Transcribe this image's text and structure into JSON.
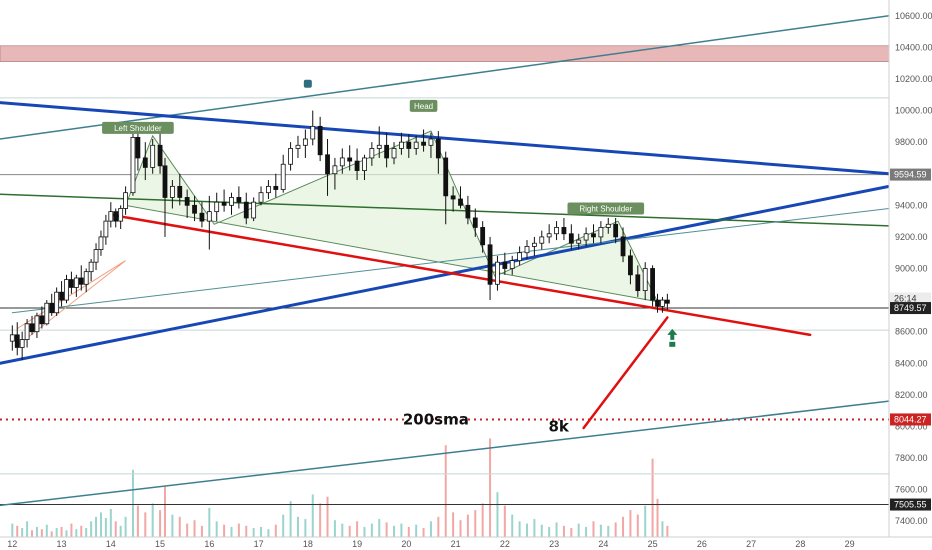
{
  "chart_data": {
    "type": "candlestick",
    "y_axis": {
      "min": 7300,
      "max": 10700,
      "ticks": [
        7400,
        7600,
        7800,
        8000,
        8200,
        8400,
        8600,
        8800,
        9000,
        9200,
        9400,
        9600,
        9800,
        10000,
        10200,
        10400,
        10600
      ]
    },
    "x_axis": {
      "min": 11.75,
      "max": 29.8,
      "ticks": [
        12,
        13,
        14,
        15,
        16,
        17,
        18,
        19,
        20,
        21,
        22,
        23,
        24,
        25,
        26,
        27,
        28,
        29
      ]
    },
    "grid": false,
    "price_tags": [
      {
        "label": "9594.59",
        "price": 9594.59,
        "style": "gray"
      },
      {
        "label": "26:14",
        "price": 8810,
        "style": "light"
      },
      {
        "label": "8749.57",
        "price": 8749.57,
        "style": "black"
      },
      {
        "label": "8044.27",
        "price": 8044.27,
        "style": "red"
      },
      {
        "label": "7505.55",
        "price": 7505.55,
        "style": "black"
      }
    ],
    "resistance_zone": {
      "low": 10310,
      "high": 10410,
      "color": "#e8b8b8"
    },
    "horizontal_lines": [
      {
        "price": 9594.59,
        "color": "#888888"
      },
      {
        "price": 8749.57,
        "color": "#333333"
      },
      {
        "price": 7505.55,
        "color": "#333333"
      },
      {
        "price": 10080,
        "color": "#c8d8d8"
      },
      {
        "price": 8610,
        "color": "#c8d8d8"
      },
      {
        "price": 7700,
        "color": "#c8d8d8"
      }
    ],
    "sma200": {
      "label": "200sma",
      "price": 8044.27,
      "color": "#cc2222"
    },
    "trend_lines": [
      {
        "name": "upper-channel-teal",
        "from": [
          11.75,
          9820
        ],
        "to": [
          29.8,
          10600
        ],
        "color": "#3e7f8f",
        "width": 1.5
      },
      {
        "name": "lower-channel-teal",
        "from": [
          11.75,
          7500
        ],
        "to": [
          29.8,
          8160
        ],
        "color": "#3e7f8f",
        "width": 1.5
      },
      {
        "name": "blue-descending",
        "from": [
          11.75,
          10050
        ],
        "to": [
          29.8,
          9600
        ],
        "color": "#1747b5",
        "width": 3
      },
      {
        "name": "blue-ascending",
        "from": [
          11.75,
          8400
        ],
        "to": [
          29.8,
          9520
        ],
        "color": "#1747b5",
        "width": 3
      },
      {
        "name": "green-trend",
        "from": [
          11.75,
          9470
        ],
        "to": [
          29.8,
          9270
        ],
        "color": "#2f6e2f",
        "width": 1.5
      },
      {
        "name": "thin-teal",
        "from": [
          12.0,
          8720
        ],
        "to": [
          29.8,
          9380
        ],
        "color": "#4f8f96",
        "width": 1
      },
      {
        "name": "neckline-red",
        "from": [
          14.0,
          9340
        ],
        "to": [
          28.2,
          8580
        ],
        "color": "#e01010",
        "width": 2.5
      },
      {
        "name": "projection-8k",
        "from": [
          23.6,
          7990
        ],
        "to": [
          25.3,
          8690
        ],
        "color": "#e01010",
        "width": 2.5
      }
    ],
    "hs_pattern": {
      "points": [
        [
          14.3,
          9400
        ],
        [
          14.85,
          9840
        ],
        [
          16.1,
          9280
        ],
        [
          20.5,
          9870
        ],
        [
          21.8,
          8950
        ],
        [
          24.3,
          9300
        ],
        [
          25.1,
          8790
        ],
        [
          14.3,
          9400
        ]
      ],
      "fill": "#e4f2dc",
      "stroke": "#5a8a5a"
    },
    "wedge": {
      "points": [
        [
          12.1,
          8620
        ],
        [
          14.3,
          9050
        ],
        [
          12.1,
          8510
        ]
      ],
      "color": "#f0a080"
    },
    "pattern_labels": [
      {
        "text": "Left Shoulder",
        "x": 14.55,
        "price": 9890
      },
      {
        "text": "Head",
        "x": 20.35,
        "price": 10030
      },
      {
        "text": "Right Shoulder",
        "x": 24.05,
        "price": 9380
      }
    ],
    "annotations": [
      {
        "text": "200sma",
        "x": 20.6,
        "price": 8044
      },
      {
        "text": "8k",
        "x": 23.3,
        "price": 8000
      }
    ],
    "markers": [
      {
        "name": "top-marker",
        "x": 18.0,
        "price": 10170,
        "color": "#2f6e80"
      },
      {
        "name": "green-arrow",
        "x": 25.4,
        "price": 8580,
        "color": "#1f7a4e"
      }
    ],
    "candles": [
      [
        12.0,
        8540,
        8640,
        8480,
        8580
      ],
      [
        12.1,
        8580,
        8660,
        8450,
        8500
      ],
      [
        12.2,
        8500,
        8600,
        8420,
        8550
      ],
      [
        12.3,
        8550,
        8680,
        8500,
        8650
      ],
      [
        12.4,
        8650,
        8700,
        8580,
        8600
      ],
      [
        12.5,
        8600,
        8720,
        8560,
        8700
      ],
      [
        12.6,
        8700,
        8760,
        8620,
        8650
      ],
      [
        12.7,
        8650,
        8800,
        8640,
        8780
      ],
      [
        12.8,
        8780,
        8840,
        8700,
        8720
      ],
      [
        12.9,
        8720,
        8880,
        8700,
        8850
      ],
      [
        13.0,
        8850,
        8920,
        8760,
        8800
      ],
      [
        13.1,
        8800,
        8960,
        8780,
        8930
      ],
      [
        13.2,
        8930,
        8980,
        8840,
        8880
      ],
      [
        13.3,
        8880,
        8960,
        8820,
        8940
      ],
      [
        13.4,
        8940,
        9020,
        8860,
        8900
      ],
      [
        13.5,
        8900,
        9000,
        8850,
        8980
      ],
      [
        13.6,
        8980,
        9060,
        8920,
        9040
      ],
      [
        13.7,
        9040,
        9160,
        8990,
        9120
      ],
      [
        13.8,
        9120,
        9240,
        9080,
        9200
      ],
      [
        13.9,
        9200,
        9340,
        9150,
        9300
      ],
      [
        14.0,
        9300,
        9420,
        9260,
        9360
      ],
      [
        14.1,
        9360,
        9380,
        9260,
        9300
      ],
      [
        14.2,
        9300,
        9400,
        9250,
        9380
      ],
      [
        14.3,
        9380,
        9520,
        9340,
        9480
      ],
      [
        14.45,
        9480,
        9920,
        9460,
        9830
      ],
      [
        14.55,
        9830,
        9900,
        9620,
        9700
      ],
      [
        14.7,
        9700,
        9800,
        9560,
        9640
      ],
      [
        14.85,
        9640,
        9820,
        9600,
        9780
      ],
      [
        15.0,
        9780,
        9880,
        9600,
        9650
      ],
      [
        15.1,
        9650,
        9700,
        9200,
        9450
      ],
      [
        15.25,
        9450,
        9560,
        9380,
        9520
      ],
      [
        15.4,
        9520,
        9600,
        9400,
        9450
      ],
      [
        15.55,
        9450,
        9500,
        9320,
        9400
      ],
      [
        15.7,
        9400,
        9460,
        9300,
        9350
      ],
      [
        15.85,
        9350,
        9420,
        9260,
        9300
      ],
      [
        16.0,
        9300,
        9460,
        9120,
        9360
      ],
      [
        16.15,
        9360,
        9480,
        9300,
        9420
      ],
      [
        16.3,
        9420,
        9500,
        9360,
        9400
      ],
      [
        16.45,
        9400,
        9480,
        9340,
        9450
      ],
      [
        16.6,
        9450,
        9520,
        9380,
        9420
      ],
      [
        16.75,
        9420,
        9480,
        9280,
        9320
      ],
      [
        16.9,
        9320,
        9450,
        9300,
        9420
      ],
      [
        17.05,
        9420,
        9520,
        9400,
        9480
      ],
      [
        17.2,
        9480,
        9560,
        9440,
        9520
      ],
      [
        17.35,
        9520,
        9600,
        9450,
        9500
      ],
      [
        17.5,
        9500,
        9720,
        9480,
        9660
      ],
      [
        17.65,
        9660,
        9800,
        9620,
        9760
      ],
      [
        17.8,
        9760,
        9840,
        9700,
        9780
      ],
      [
        17.95,
        9780,
        9880,
        9700,
        9820
      ],
      [
        18.1,
        9820,
        10000,
        9780,
        9900
      ],
      [
        18.25,
        9900,
        9960,
        9680,
        9720
      ],
      [
        18.4,
        9720,
        9820,
        9460,
        9600
      ],
      [
        18.55,
        9600,
        9700,
        9500,
        9650
      ],
      [
        18.7,
        9650,
        9760,
        9600,
        9700
      ],
      [
        18.85,
        9700,
        9780,
        9620,
        9680
      ],
      [
        19.0,
        9680,
        9760,
        9560,
        9620
      ],
      [
        19.15,
        9620,
        9720,
        9560,
        9700
      ],
      [
        19.3,
        9700,
        9800,
        9650,
        9760
      ],
      [
        19.45,
        9760,
        9900,
        9700,
        9780
      ],
      [
        19.6,
        9780,
        9860,
        9640,
        9700
      ],
      [
        19.75,
        9700,
        9800,
        9660,
        9760
      ],
      [
        19.9,
        9760,
        9860,
        9720,
        9800
      ],
      [
        20.05,
        9800,
        9850,
        9700,
        9760
      ],
      [
        20.2,
        9760,
        9840,
        9720,
        9800
      ],
      [
        20.35,
        9800,
        9880,
        9740,
        9780
      ],
      [
        20.5,
        9780,
        9860,
        9700,
        9820
      ],
      [
        20.65,
        9820,
        9870,
        9600,
        9700
      ],
      [
        20.8,
        9700,
        9740,
        9280,
        9460
      ],
      [
        20.95,
        9460,
        9520,
        9360,
        9440
      ],
      [
        21.1,
        9440,
        9520,
        9380,
        9400
      ],
      [
        21.25,
        9400,
        9460,
        9280,
        9320
      ],
      [
        21.4,
        9320,
        9380,
        9200,
        9260
      ],
      [
        21.55,
        9260,
        9300,
        9100,
        9150
      ],
      [
        21.7,
        9150,
        9200,
        8800,
        8900
      ],
      [
        21.85,
        8900,
        9080,
        8860,
        9040
      ],
      [
        22.0,
        9040,
        9100,
        8960,
        9000
      ],
      [
        22.15,
        9000,
        9080,
        8960,
        9050
      ],
      [
        22.3,
        9050,
        9140,
        9020,
        9100
      ],
      [
        22.45,
        9100,
        9180,
        9060,
        9140
      ],
      [
        22.6,
        9140,
        9200,
        9080,
        9160
      ],
      [
        22.75,
        9160,
        9240,
        9120,
        9200
      ],
      [
        22.9,
        9200,
        9280,
        9160,
        9220
      ],
      [
        23.05,
        9220,
        9300,
        9180,
        9260
      ],
      [
        23.2,
        9260,
        9320,
        9180,
        9220
      ],
      [
        23.35,
        9220,
        9280,
        9120,
        9160
      ],
      [
        23.5,
        9160,
        9220,
        9120,
        9180
      ],
      [
        23.65,
        9180,
        9260,
        9140,
        9220
      ],
      [
        23.8,
        9220,
        9280,
        9160,
        9200
      ],
      [
        23.95,
        9200,
        9300,
        9160,
        9260
      ],
      [
        24.1,
        9260,
        9320,
        9220,
        9280
      ],
      [
        24.25,
        9280,
        9320,
        9160,
        9200
      ],
      [
        24.4,
        9200,
        9260,
        9040,
        9080
      ],
      [
        24.55,
        9080,
        9120,
        8900,
        8960
      ],
      [
        24.7,
        8960,
        9020,
        8820,
        8860
      ],
      [
        24.85,
        8860,
        9040,
        8800,
        9000
      ],
      [
        25.0,
        9000,
        9020,
        8760,
        8800
      ],
      [
        25.1,
        8800,
        8840,
        8720,
        8760
      ],
      [
        25.2,
        8760,
        8820,
        8720,
        8800
      ],
      [
        25.3,
        8800,
        8840,
        8740,
        8780
      ]
    ],
    "volume": [
      [
        12.0,
        12
      ],
      [
        12.1,
        10
      ],
      [
        12.2,
        8
      ],
      [
        12.3,
        14
      ],
      [
        12.4,
        6
      ],
      [
        12.5,
        9
      ],
      [
        12.6,
        7
      ],
      [
        12.7,
        11
      ],
      [
        12.8,
        5
      ],
      [
        12.9,
        8
      ],
      [
        13.0,
        9
      ],
      [
        13.1,
        6
      ],
      [
        13.2,
        12
      ],
      [
        13.3,
        7
      ],
      [
        13.4,
        10
      ],
      [
        13.5,
        8
      ],
      [
        13.6,
        14
      ],
      [
        13.7,
        18
      ],
      [
        13.8,
        22
      ],
      [
        13.9,
        17
      ],
      [
        14.0,
        25
      ],
      [
        14.1,
        14
      ],
      [
        14.2,
        10
      ],
      [
        14.3,
        18
      ],
      [
        14.45,
        60
      ],
      [
        14.55,
        28
      ],
      [
        14.7,
        22
      ],
      [
        14.85,
        30
      ],
      [
        15.0,
        24
      ],
      [
        15.1,
        45
      ],
      [
        15.25,
        20
      ],
      [
        15.4,
        18
      ],
      [
        15.55,
        12
      ],
      [
        15.7,
        15
      ],
      [
        15.85,
        10
      ],
      [
        16.0,
        26
      ],
      [
        16.15,
        14
      ],
      [
        16.3,
        11
      ],
      [
        16.45,
        9
      ],
      [
        16.6,
        12
      ],
      [
        16.75,
        10
      ],
      [
        16.9,
        8
      ],
      [
        17.05,
        9
      ],
      [
        17.2,
        7
      ],
      [
        17.35,
        11
      ],
      [
        17.5,
        20
      ],
      [
        17.65,
        32
      ],
      [
        17.8,
        18
      ],
      [
        17.95,
        16
      ],
      [
        18.1,
        38
      ],
      [
        18.25,
        30
      ],
      [
        18.4,
        36
      ],
      [
        18.55,
        15
      ],
      [
        18.7,
        12
      ],
      [
        18.85,
        10
      ],
      [
        19.0,
        14
      ],
      [
        19.15,
        9
      ],
      [
        19.3,
        12
      ],
      [
        19.45,
        16
      ],
      [
        19.6,
        13
      ],
      [
        19.75,
        10
      ],
      [
        19.9,
        12
      ],
      [
        20.05,
        9
      ],
      [
        20.2,
        11
      ],
      [
        20.35,
        8
      ],
      [
        20.5,
        14
      ],
      [
        20.65,
        18
      ],
      [
        20.8,
        82
      ],
      [
        20.95,
        22
      ],
      [
        21.1,
        15
      ],
      [
        21.25,
        20
      ],
      [
        21.4,
        24
      ],
      [
        21.55,
        30
      ],
      [
        21.7,
        88
      ],
      [
        21.85,
        40
      ],
      [
        22.0,
        28
      ],
      [
        22.15,
        20
      ],
      [
        22.3,
        14
      ],
      [
        22.45,
        12
      ],
      [
        22.6,
        16
      ],
      [
        22.75,
        11
      ],
      [
        22.9,
        9
      ],
      [
        23.05,
        13
      ],
      [
        23.2,
        10
      ],
      [
        23.35,
        8
      ],
      [
        23.5,
        12
      ],
      [
        23.65,
        9
      ],
      [
        23.8,
        14
      ],
      [
        23.95,
        11
      ],
      [
        24.1,
        10
      ],
      [
        24.25,
        13
      ],
      [
        24.4,
        18
      ],
      [
        24.55,
        24
      ],
      [
        24.7,
        20
      ],
      [
        24.85,
        28
      ],
      [
        25.0,
        70
      ],
      [
        25.1,
        34
      ],
      [
        25.2,
        14
      ],
      [
        25.3,
        10
      ]
    ],
    "volume_scale_max": 100,
    "colors": {
      "up": "#26a69a",
      "down": "#ef5350",
      "candle": "#111111",
      "vol_up": "#9bd4cd",
      "vol_down": "#f2a7a5"
    }
  }
}
